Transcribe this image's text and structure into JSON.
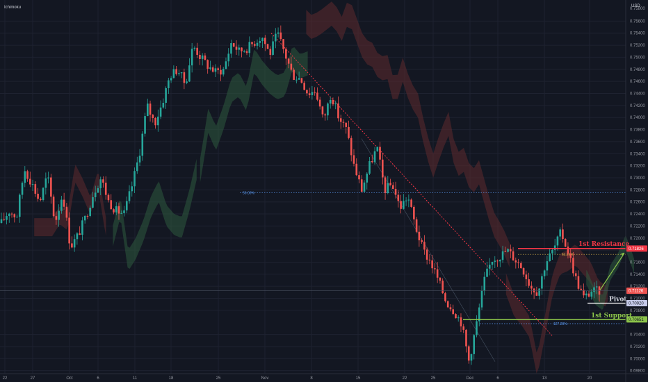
{
  "indicator_label": "Ichimoku",
  "currency_label": "USD",
  "colors": {
    "background": "#131722",
    "grid": "#1e2230",
    "up": "#26a69a",
    "down": "#ef5350",
    "cloud_bull": "#2e5a3e",
    "cloud_bear": "#5e2a2e",
    "resistance": "#f23645",
    "support": "#8bc34a",
    "pivot": "#ffffff",
    "fib": "#5b9cf6",
    "fib_618": "#e0b84a",
    "trendline": "#f23645",
    "arrow": "#8bc34a",
    "badge_resistance": "#f23645",
    "badge_pivot": "#c5cae9",
    "badge_support": "#8bc34a",
    "badge_current": "#ef5350"
  },
  "chart_data": {
    "type": "candlestick",
    "x_ticks": [
      "22",
      "27",
      "Oct",
      "6",
      "11",
      "18",
      "25",
      "Nov",
      "8",
      "15",
      "22",
      "25",
      "Dec",
      "6",
      "13",
      "20"
    ],
    "y_ticks": [
      "0.75600",
      "0.75400",
      "0.75200",
      "0.75000",
      "0.74800",
      "0.74600",
      "0.74400",
      "0.74200",
      "0.74000",
      "0.73800",
      "0.73600",
      "0.73400",
      "0.73200",
      "0.73000",
      "0.72800",
      "0.72600",
      "0.72400",
      "0.72200",
      "0.72000",
      "0.71800",
      "0.71600",
      "0.71400",
      "0.71200",
      "0.71000",
      "0.70800",
      "0.70400",
      "0.70200",
      "0.70000",
      "0.69800"
    ],
    "y_top_cut_label": "0.75800",
    "ylim": [
      0.6975,
      0.7595
    ],
    "price_path": [
      0.7225,
      0.7245,
      0.7235,
      0.7315,
      0.729,
      0.726,
      0.7305,
      0.7225,
      0.7275,
      0.7185,
      0.7205,
      0.7235,
      0.7275,
      0.73,
      0.726,
      0.7245,
      0.724,
      0.7285,
      0.734,
      0.742,
      0.739,
      0.7425,
      0.747,
      0.748,
      0.7455,
      0.752,
      0.75,
      0.7485,
      0.7475,
      0.748,
      0.7525,
      0.751,
      0.7515,
      0.7525,
      0.7535,
      0.7505,
      0.754,
      0.7505,
      0.747,
      0.7465,
      0.744,
      0.7445,
      0.7395,
      0.744,
      0.74,
      0.738,
      0.732,
      0.728,
      0.732,
      0.735,
      0.728,
      0.729,
      0.725,
      0.727,
      0.722,
      0.718,
      0.716,
      0.713,
      0.7095,
      0.708,
      0.706,
      0.6995,
      0.706,
      0.713,
      0.7165,
      0.717,
      0.718,
      0.7165,
      0.715,
      0.712,
      0.711,
      0.716,
      0.718,
      0.721,
      0.7175,
      0.713,
      0.71,
      0.7112,
      0.7112
    ],
    "candle_count": 230,
    "levels": {
      "resistance": {
        "label": "1st Resistance",
        "value": 0.71826,
        "badge": "0.71826"
      },
      "pivot": {
        "label": "Pivot",
        "value": 0.7092,
        "badge": "0.70920"
      },
      "support": {
        "label": "1st Support",
        "value": 0.70651,
        "badge": "0.70651"
      },
      "current": {
        "value": 0.71126,
        "badge": "0.71126"
      }
    },
    "fib_labels": {
      "f50": {
        "label": "50.00%",
        "value": 0.7275
      },
      "f618": {
        "label": "61.80%",
        "value": 0.7173
      },
      "f1272": {
        "label": "127.20%",
        "value": 0.7058
      }
    }
  }
}
